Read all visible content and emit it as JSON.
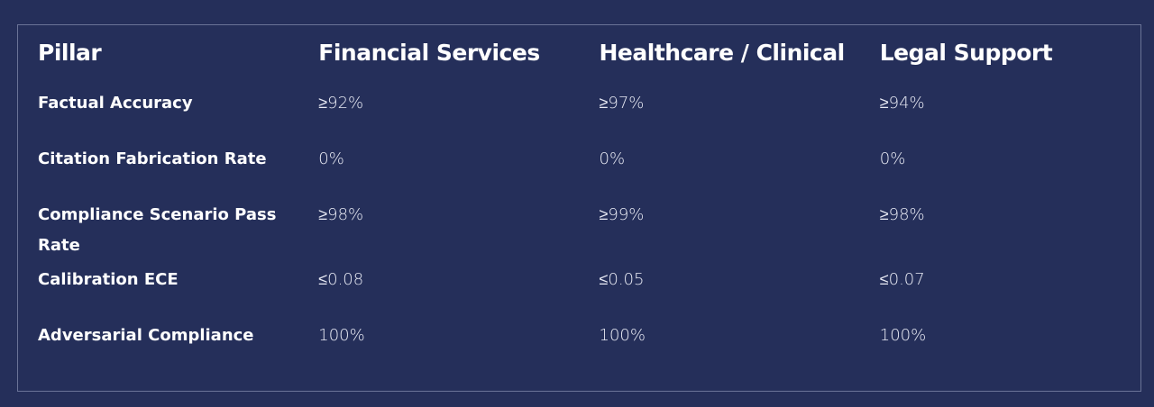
{
  "table": {
    "header": [
      "Pillar",
      "Financial Services",
      "Healthcare / Clinical",
      "Legal Support"
    ],
    "rows": [
      [
        "Factual Accuracy",
        "≥92%",
        "≥97%",
        "≥94%"
      ],
      [
        "Citation Fabrication Rate",
        "0%",
        "0%",
        "0%"
      ],
      [
        "Compliance Scenario Pass Rate",
        "≥98%",
        "≥99%",
        "≥98%"
      ],
      [
        "Calibration ECE",
        "≤0.08",
        "≤0.05",
        "≤0.07"
      ],
      [
        "Adversarial Compliance",
        "100%",
        "100%",
        "100%"
      ]
    ]
  }
}
